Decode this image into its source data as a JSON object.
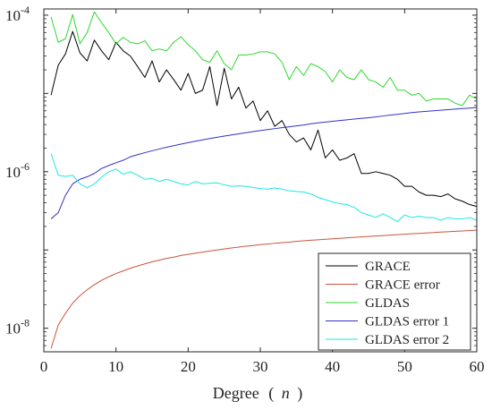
{
  "chart_data": {
    "type": "line",
    "title": "",
    "xlabel": {
      "main": "Degree",
      "open": "(",
      "var": "n",
      "close": ")"
    },
    "ylabel": "",
    "xlim": [
      0,
      60
    ],
    "ylim": [
      5e-09,
      0.00012
    ],
    "yscale": "log",
    "x_ticks": [
      0,
      10,
      20,
      30,
      40,
      50,
      60
    ],
    "x_tick_labels": [
      "0",
      "10",
      "20",
      "30",
      "40",
      "50",
      "60"
    ],
    "y_ticks": [
      {
        "value": 1e-08,
        "base": "10",
        "exp": "-8"
      },
      {
        "value": 1e-06,
        "base": "10",
        "exp": "-6"
      },
      {
        "value": 0.0001,
        "base": "10",
        "exp": "-4"
      }
    ],
    "grid": false,
    "legend_position": "bottom-right",
    "x": [
      1,
      2,
      3,
      4,
      5,
      6,
      7,
      8,
      9,
      10,
      11,
      12,
      13,
      14,
      15,
      16,
      17,
      18,
      19,
      20,
      21,
      22,
      23,
      24,
      25,
      26,
      27,
      28,
      29,
      30,
      31,
      32,
      33,
      34,
      35,
      36,
      37,
      38,
      39,
      40,
      41,
      42,
      43,
      44,
      45,
      46,
      47,
      48,
      49,
      50,
      51,
      52,
      53,
      54,
      55,
      56,
      57,
      58,
      59,
      60
    ],
    "series": [
      {
        "name": "GRACE",
        "color": "#000000",
        "values": [
          9.5e-06,
          2.3e-05,
          3.2e-05,
          6.2e-05,
          3.3e-05,
          2.6e-05,
          4.8e-05,
          3.5e-05,
          2.7e-05,
          4.5e-05,
          3.5e-05,
          3e-05,
          2.2e-05,
          1.6e-05,
          2.6e-05,
          1.4e-05,
          2e-05,
          1.5e-05,
          1.1e-05,
          1.8e-05,
          1e-05,
          1.1e-05,
          2.2e-05,
          7e-06,
          2.1e-05,
          8.5e-06,
          1.2e-05,
          6.5e-06,
          8e-06,
          4.5e-06,
          6e-06,
          3.8e-06,
          4.5e-06,
          3e-06,
          2.4e-06,
          2.7e-06,
          1.9e-06,
          3.4e-06,
          1.5e-06,
          1.9e-06,
          1.4e-06,
          1.5e-06,
          1.7e-06,
          9.5e-07,
          9.5e-07,
          1e-06,
          9.5e-07,
          9e-07,
          8e-07,
          6.5e-07,
          6.5e-07,
          5.5e-07,
          5e-07,
          5e-07,
          4.8e-07,
          5.2e-07,
          4.5e-07,
          4.2e-07,
          3.8e-07,
          3.6e-07
        ]
      },
      {
        "name": "GRACE error",
        "color": "#c8553d",
        "values": [
          5.5e-09,
          1.1e-08,
          1.55e-08,
          2.1e-08,
          2.6e-08,
          3.1e-08,
          3.6e-08,
          4.1e-08,
          4.55e-08,
          5e-08,
          5.4e-08,
          5.85e-08,
          6.25e-08,
          6.65e-08,
          7.05e-08,
          7.4e-08,
          7.8e-08,
          8.1e-08,
          8.5e-08,
          8.8e-08,
          9.1e-08,
          9.4e-08,
          9.7e-08,
          1e-07,
          1.03e-07,
          1.06e-07,
          1.09e-07,
          1.12e-07,
          1.14e-07,
          1.17e-07,
          1.19e-07,
          1.22e-07,
          1.24e-07,
          1.26e-07,
          1.29e-07,
          1.31e-07,
          1.33e-07,
          1.35e-07,
          1.37e-07,
          1.39e-07,
          1.41e-07,
          1.43e-07,
          1.45e-07,
          1.47e-07,
          1.49e-07,
          1.51e-07,
          1.53e-07,
          1.55e-07,
          1.57e-07,
          1.59e-07,
          1.61e-07,
          1.63e-07,
          1.65e-07,
          1.67e-07,
          1.69e-07,
          1.71e-07,
          1.73e-07,
          1.75e-07,
          1.77e-07,
          1.79e-07
        ]
      },
      {
        "name": "GLDAS",
        "color": "#2ed82e",
        "values": [
          9.5e-05,
          4.5e-05,
          5e-05,
          0.000102,
          4.3e-05,
          6e-05,
          0.00011,
          8e-05,
          6e-05,
          4.3e-05,
          5.2e-05,
          4.5e-05,
          4.3e-05,
          4.7e-05,
          3.5e-05,
          3.7e-05,
          3.5e-05,
          4.5e-05,
          5.3e-05,
          4.2e-05,
          3.5e-05,
          2.7e-05,
          2.5e-05,
          3.5e-05,
          2.4e-05,
          2e-05,
          3.1e-05,
          3.1e-05,
          3.2e-05,
          3.4e-05,
          3.4e-05,
          3.2e-05,
          2.5e-05,
          1.5e-05,
          2.2e-05,
          1.7e-05,
          2.4e-05,
          2.2e-05,
          1.9e-05,
          1.4e-05,
          2e-05,
          1.6e-05,
          1.5e-05,
          2e-05,
          1.5e-05,
          1.4e-05,
          1.2e-05,
          1.6e-05,
          1.1e-05,
          1.1e-05,
          9.5e-06,
          1e-05,
          8e-06,
          8.5e-06,
          8.5e-06,
          8.5e-06,
          7.5e-06,
          7e-06,
          9.5e-06,
          8.5e-06
        ]
      },
      {
        "name": "GLDAS error 1",
        "color": "#3232c8",
        "values": [
          2.5e-07,
          3e-07,
          5e-07,
          7e-07,
          8e-07,
          8.6e-07,
          9.5e-07,
          1.1e-06,
          1.2e-06,
          1.3e-06,
          1.4e-06,
          1.55e-06,
          1.65e-06,
          1.75e-06,
          1.85e-06,
          1.95e-06,
          2.05e-06,
          2.15e-06,
          2.25e-06,
          2.35e-06,
          2.45e-06,
          2.55e-06,
          2.65e-06,
          2.75e-06,
          2.85e-06,
          2.95e-06,
          3.05e-06,
          3.15e-06,
          3.25e-06,
          3.35e-06,
          3.45e-06,
          3.55e-06,
          3.65e-06,
          3.75e-06,
          3.85e-06,
          3.95e-06,
          4.1e-06,
          4.2e-06,
          4.3e-06,
          4.4e-06,
          4.5e-06,
          4.6e-06,
          4.7e-06,
          4.8e-06,
          4.9e-06,
          5e-06,
          5.15e-06,
          5.3e-06,
          5.4e-06,
          5.55e-06,
          5.7e-06,
          5.8e-06,
          5.9e-06,
          6e-06,
          6.1e-06,
          6.2e-06,
          6.3e-06,
          6.4e-06,
          6.5e-06,
          6.6e-06
        ]
      },
      {
        "name": "GLDAS error 2",
        "color": "#1ee6e6",
        "values": [
          1.7e-06,
          9e-07,
          8.7e-07,
          9e-07,
          7e-07,
          6.2e-07,
          7e-07,
          8.5e-07,
          1e-06,
          1.08e-06,
          9.3e-07,
          1e-06,
          9e-07,
          8e-07,
          8.2e-07,
          7.5e-07,
          8e-07,
          7.5e-07,
          7e-07,
          6.8e-07,
          7.5e-07,
          7e-07,
          7.1e-07,
          7.2e-07,
          6.8e-07,
          6.5e-07,
          6.6e-07,
          6.5e-07,
          6.3e-07,
          6.1e-07,
          6e-07,
          6.2e-07,
          6e-07,
          5.7e-07,
          5.6e-07,
          5.5e-07,
          5.2e-07,
          4.7e-07,
          4.4e-07,
          4.1e-07,
          3.9e-07,
          3.8e-07,
          3.5e-07,
          3e-07,
          2.8e-07,
          2.6e-07,
          2.9e-07,
          2.6e-07,
          2.3e-07,
          2.8e-07,
          2.6e-07,
          2.7e-07,
          2.6e-07,
          2.6e-07,
          2.4e-07,
          2.6e-07,
          2.5e-07,
          2.5e-07,
          2.6e-07,
          2.4e-07
        ]
      }
    ]
  }
}
